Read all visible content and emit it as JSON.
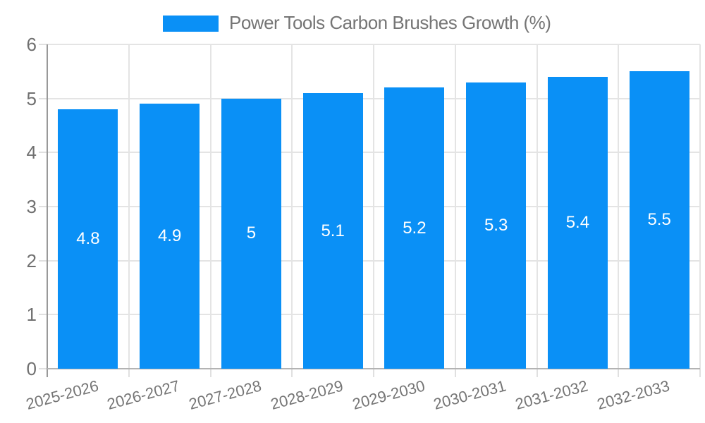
{
  "chart_data": {
    "type": "bar",
    "title": "Power Tools Carbon Brushes Growth (%)",
    "legend": [
      "Power Tools Carbon Brushes Growth (%)"
    ],
    "legend_position": "top",
    "categories": [
      "2025-2026",
      "2026-2027",
      "2027-2028",
      "2028-2029",
      "2029-2030",
      "2030-2031",
      "2031-2032",
      "2032-2033"
    ],
    "values": [
      4.8,
      4.9,
      5,
      5.1,
      5.2,
      5.3,
      5.4,
      5.5
    ],
    "value_labels": [
      "4.8",
      "4.9",
      "5",
      "5.1",
      "5.2",
      "5.3",
      "5.4",
      "5.5"
    ],
    "xlabel": "",
    "ylabel": "",
    "ylim": [
      0,
      6
    ],
    "yticks": [
      "0",
      "1",
      "2",
      "3",
      "4",
      "5",
      "6"
    ],
    "grid": true,
    "colors": {
      "bar": "#0a90f6",
      "bar_label": "#ffffff",
      "grid": "#e4e4e4",
      "axis_y": "#999999",
      "axis_x": "#b3b3b3",
      "text": "#757575"
    }
  }
}
